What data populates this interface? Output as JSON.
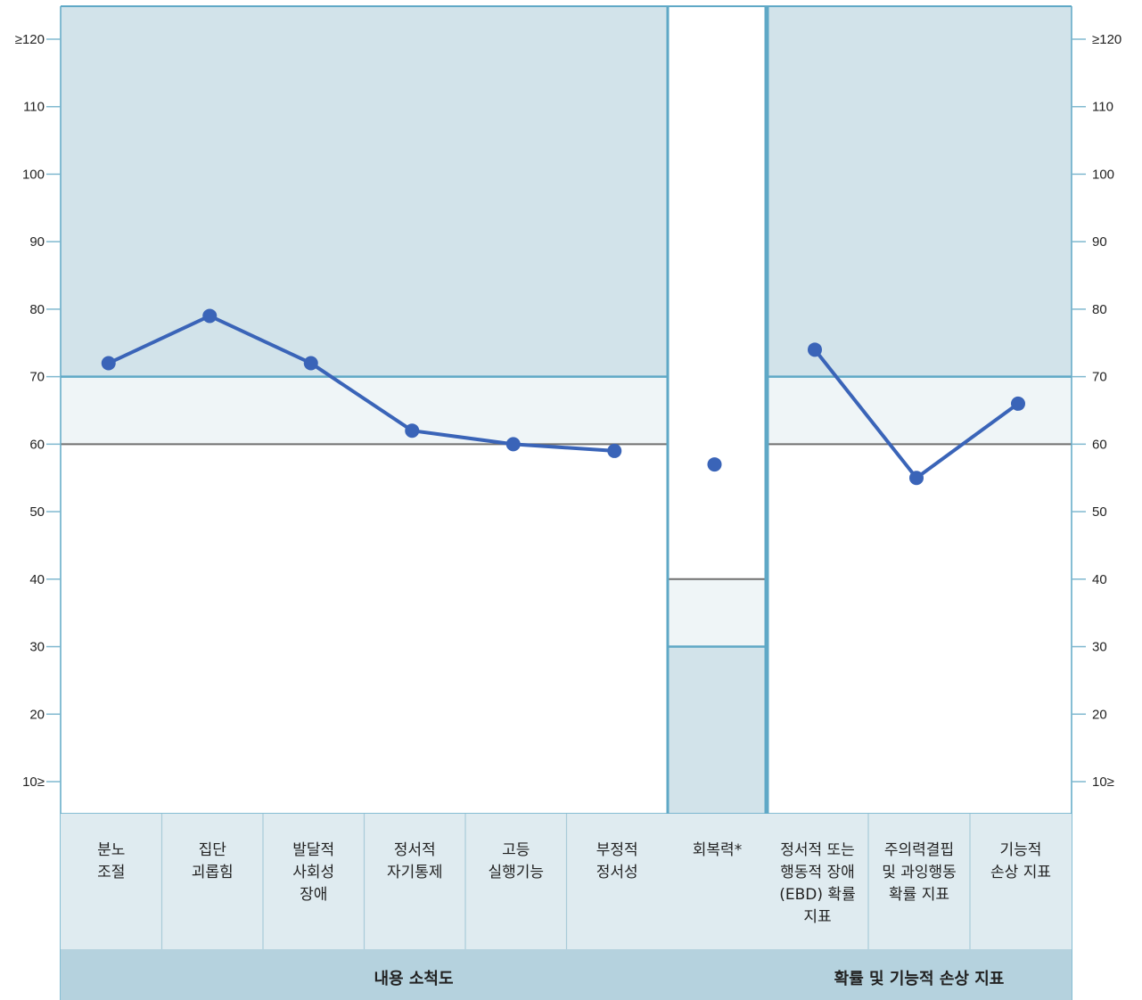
{
  "chart_data": {
    "type": "line",
    "y_axis": {
      "range": [
        10,
        120
      ],
      "ticks": [
        {
          "value": 120,
          "label": "≥120"
        },
        {
          "value": 110,
          "label": "110"
        },
        {
          "value": 100,
          "label": "100"
        },
        {
          "value": 90,
          "label": "90"
        },
        {
          "value": 80,
          "label": "80"
        },
        {
          "value": 70,
          "label": "70"
        },
        {
          "value": 60,
          "label": "60"
        },
        {
          "value": 50,
          "label": "50"
        },
        {
          "value": 40,
          "label": "40"
        },
        {
          "value": 30,
          "label": "30"
        },
        {
          "value": 20,
          "label": "20"
        },
        {
          "value": 10,
          "label": "10≥"
        }
      ]
    },
    "groups": [
      {
        "label": "내용 소척도",
        "connected": true,
        "cutoffs": {
          "reference": 60,
          "elevated": 70,
          "elevated_direction": "above"
        },
        "categories": [
          {
            "label": [
              "분노",
              "조절"
            ],
            "value": 72
          },
          {
            "label": [
              "집단",
              "괴롭힘"
            ],
            "value": 79
          },
          {
            "label": [
              "발달적",
              "사회성",
              "장애"
            ],
            "value": 72
          },
          {
            "label": [
              "정서적",
              "자기통제"
            ],
            "value": 62
          },
          {
            "label": [
              "고등",
              "실행기능"
            ],
            "value": 60
          },
          {
            "label": [
              "부정적",
              "정서성"
            ],
            "value": 59
          }
        ]
      },
      {
        "label": "",
        "connected": false,
        "cutoffs": {
          "reference": 40,
          "elevated": 30,
          "elevated_direction": "below"
        },
        "categories": [
          {
            "label": [
              "회복력*"
            ],
            "value": 57
          }
        ]
      },
      {
        "label": "확률 및 기능적 손상 지표",
        "connected": true,
        "cutoffs": {
          "reference": 60,
          "elevated": 70,
          "elevated_direction": "above"
        },
        "categories": [
          {
            "label": [
              "정서적 또는",
              "행동적 장애",
              "(EBD) 확률",
              "지표"
            ],
            "value": 74
          },
          {
            "label": [
              "주의력결핍",
              "및 과잉행동",
              "확률 지표"
            ],
            "value": 55
          },
          {
            "label": [
              "기능적",
              "손상 지표"
            ],
            "value": 66
          }
        ]
      }
    ],
    "colors": {
      "line": "#3a64b8",
      "elevated_band": "#d2e3ea",
      "borderline_band": "#eff5f7",
      "label_panel": "#dfebf0",
      "group_bar": "#b5d2de",
      "frame": "#5fa8c6",
      "reference_line": "#707070"
    }
  }
}
